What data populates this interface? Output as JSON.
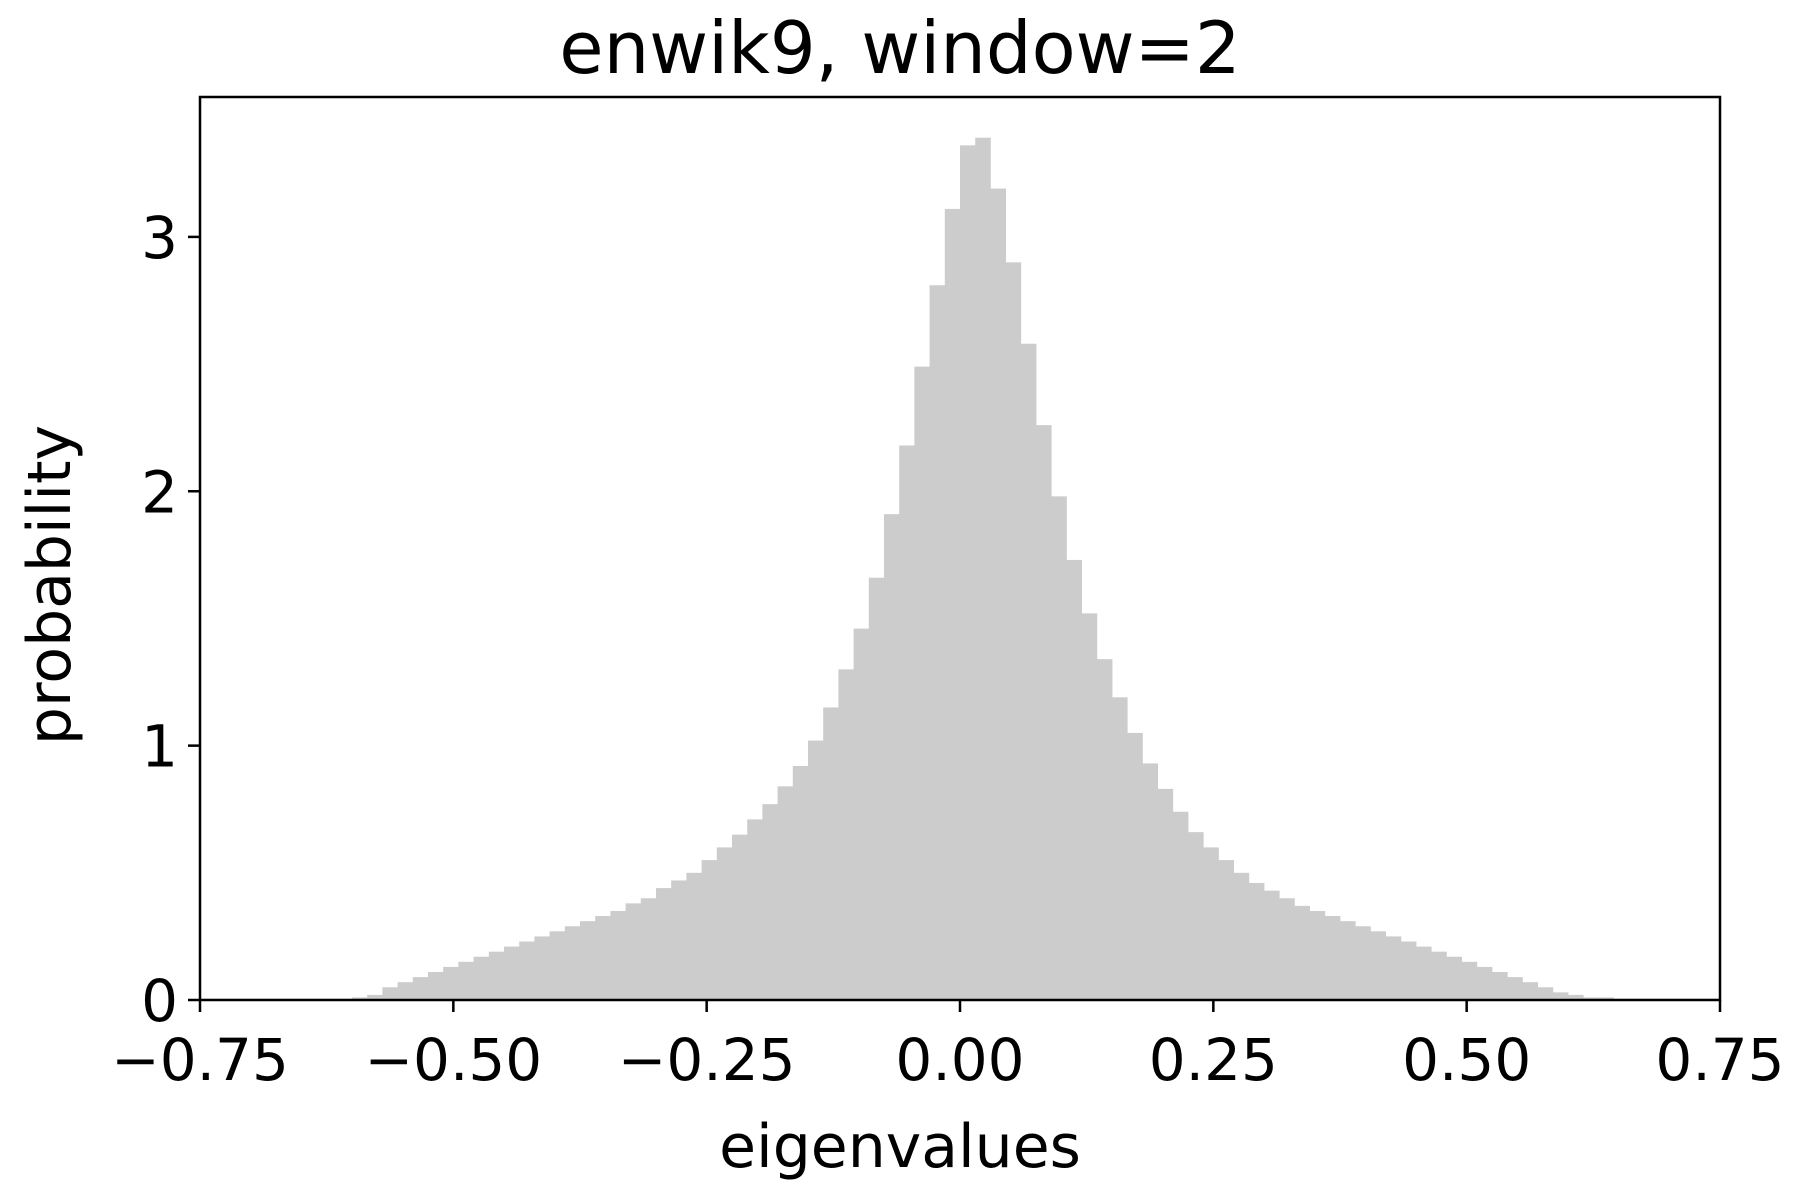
{
  "chart_data": {
    "type": "bar",
    "title": "enwik9, window=2",
    "xlabel": "eigenvalues",
    "ylabel": "probability",
    "xlim": [
      -0.75,
      0.75
    ],
    "ylim": [
      0,
      3.55
    ],
    "xticks": [
      -0.75,
      -0.5,
      -0.25,
      0.0,
      0.25,
      0.5,
      0.75
    ],
    "xtick_labels": [
      "−0.75",
      "−0.50",
      "−0.25",
      "0.00",
      "0.25",
      "0.50",
      "0.75"
    ],
    "yticks": [
      0,
      1,
      2,
      3
    ],
    "ytick_labels": [
      "0",
      "1",
      "2",
      "3"
    ],
    "grid": false,
    "bar_color": "#cccccc",
    "bin_width": 0.015,
    "bin_start": -0.75,
    "values": [
      0.005,
      0.005,
      0.005,
      0.005,
      0.005,
      0.005,
      0.005,
      0.005,
      0.005,
      0.005,
      0.01,
      0.02,
      0.05,
      0.07,
      0.09,
      0.11,
      0.13,
      0.15,
      0.17,
      0.19,
      0.21,
      0.23,
      0.25,
      0.27,
      0.29,
      0.31,
      0.33,
      0.35,
      0.38,
      0.4,
      0.44,
      0.47,
      0.5,
      0.55,
      0.6,
      0.65,
      0.71,
      0.77,
      0.84,
      0.92,
      1.02,
      1.15,
      1.3,
      1.46,
      1.66,
      1.91,
      2.18,
      2.49,
      2.81,
      3.11,
      3.36,
      3.39,
      3.19,
      2.9,
      2.58,
      2.26,
      1.98,
      1.73,
      1.52,
      1.34,
      1.19,
      1.05,
      0.93,
      0.83,
      0.74,
      0.66,
      0.6,
      0.55,
      0.5,
      0.46,
      0.43,
      0.4,
      0.37,
      0.35,
      0.33,
      0.31,
      0.29,
      0.27,
      0.25,
      0.23,
      0.21,
      0.19,
      0.17,
      0.15,
      0.13,
      0.11,
      0.09,
      0.07,
      0.05,
      0.03,
      0.02,
      0.01,
      0.01,
      0.005,
      0.005,
      0.005,
      0.005,
      0.005,
      0.005,
      0.005
    ]
  }
}
